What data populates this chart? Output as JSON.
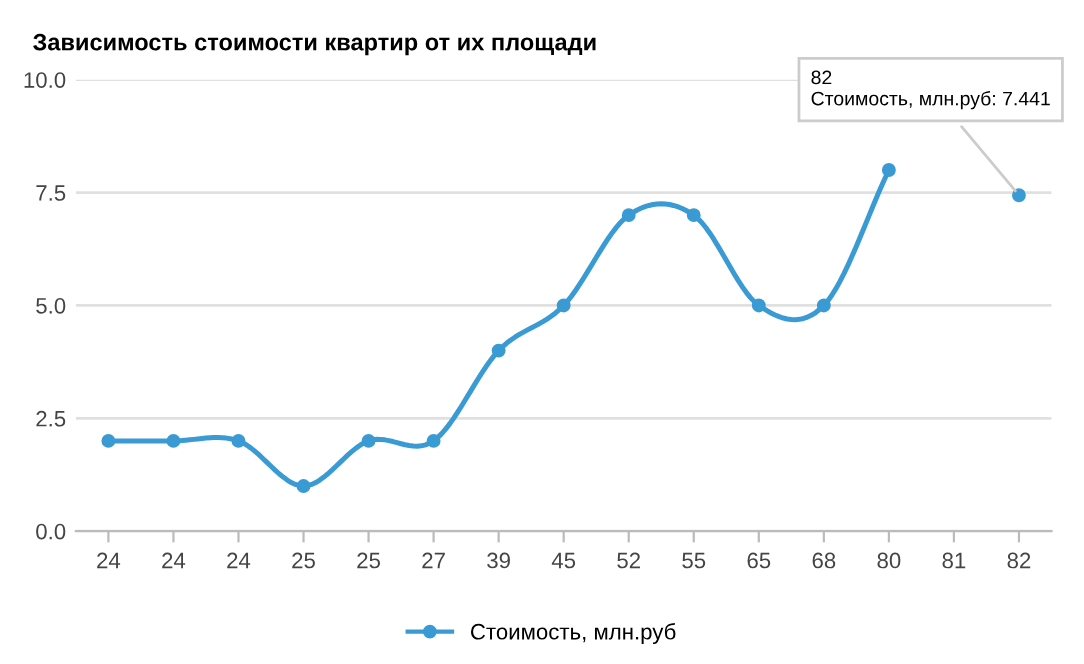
{
  "chart_data": {
    "type": "line",
    "title": "Зависимость стоимости квартир от их площади",
    "categories": [
      "24",
      "24",
      "24",
      "25",
      "25",
      "27",
      "39",
      "45",
      "52",
      "55",
      "65",
      "68",
      "80",
      "81",
      "82"
    ],
    "series": [
      {
        "name": "Стоимость, млн.руб",
        "color": "#3a9ad4",
        "values": [
          2,
          2,
          2,
          1,
          2,
          2,
          4,
          5,
          7,
          7,
          5,
          5,
          8,
          null,
          7.441
        ]
      }
    ],
    "ylim": [
      0,
      10
    ],
    "yticks": [
      {
        "value": 0,
        "label": "0.0"
      },
      {
        "value": 2.5,
        "label": "2.5"
      },
      {
        "value": 5,
        "label": "5.0"
      },
      {
        "value": 7.5,
        "label": "7.5"
      },
      {
        "value": 10,
        "label": "10.0"
      }
    ],
    "annotations": [
      {
        "text": "82\nСтоимость, млн.руб: 7.441",
        "x": "82",
        "y": 7.441
      }
    ],
    "grid": "y",
    "legend": "bottom",
    "marker": "circle",
    "line_style": "solid"
  }
}
